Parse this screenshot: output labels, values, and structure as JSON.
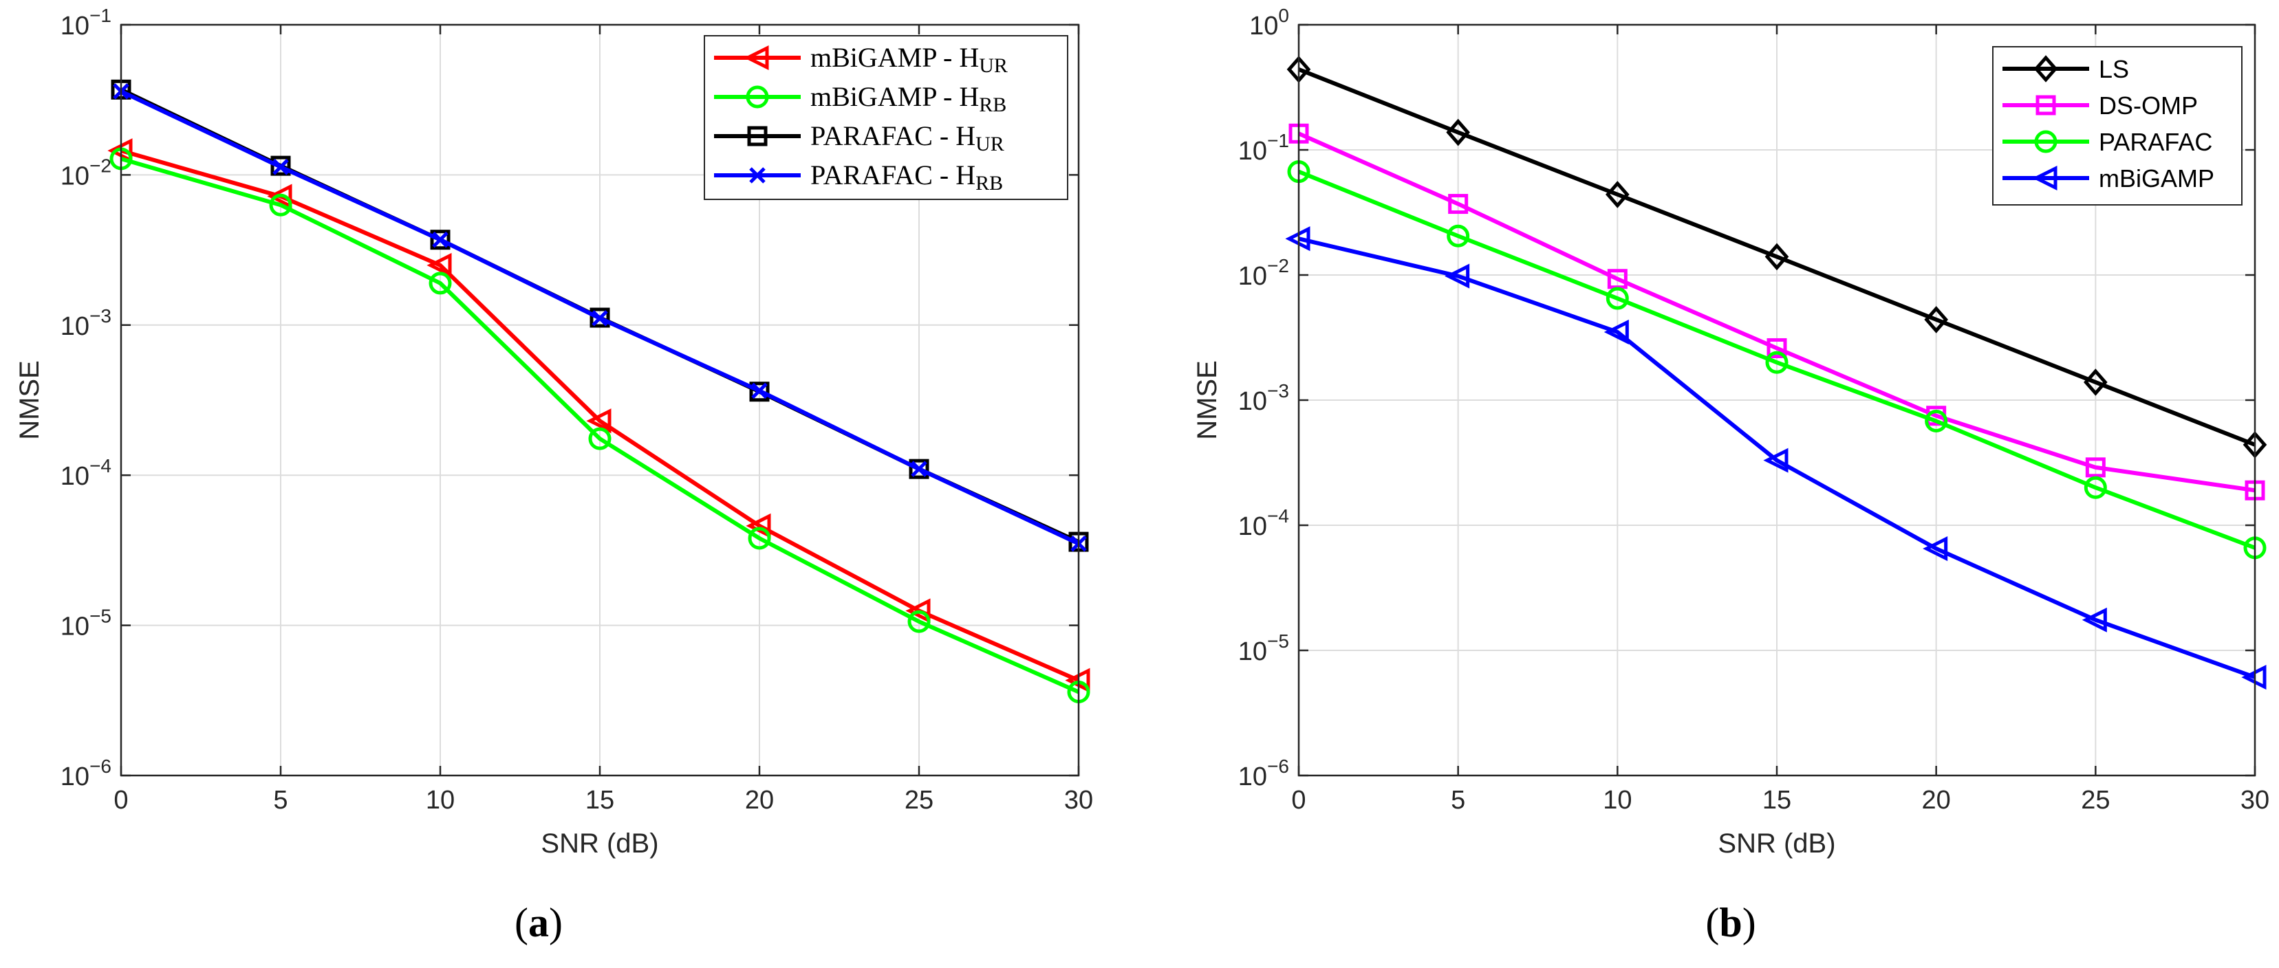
{
  "panels": [
    {
      "caption_text": "(",
      "caption_letter": "a",
      "caption_close": ")"
    },
    {
      "caption_text": "(",
      "caption_letter": "b",
      "caption_close": ")"
    }
  ],
  "chart_data": [
    {
      "type": "line",
      "xlabel": "SNR (dB)",
      "ylabel": "NMSE",
      "x": [
        0,
        5,
        10,
        15,
        20,
        25,
        30
      ],
      "xticks": [
        "0",
        "5",
        "10",
        "15",
        "20",
        "25",
        "30"
      ],
      "y_scale": "log",
      "ylim": [
        1e-06,
        0.1
      ],
      "yticks": [
        {
          "base": "10",
          "exp": "−6"
        },
        {
          "base": "10",
          "exp": "−5"
        },
        {
          "base": "10",
          "exp": "−4"
        },
        {
          "base": "10",
          "exp": "−3"
        },
        {
          "base": "10",
          "exp": "−2"
        },
        {
          "base": "10",
          "exp": "−1"
        }
      ],
      "grid": true,
      "legend_position": "top-right",
      "legend_font": "serif",
      "series": [
        {
          "name": "mBiGAMP - H",
          "subscript": "UR",
          "color": "#ff0000",
          "marker": "triangle-left",
          "values": [
            0.0145,
            0.0072,
            0.0025,
            0.00023,
            4.6e-05,
            1.25e-05,
            4.3e-06
          ]
        },
        {
          "name": "mBiGAMP - H",
          "subscript": "RB",
          "color": "#00ff00",
          "marker": "circle",
          "values": [
            0.0128,
            0.0063,
            0.0019,
            0.000175,
            3.8e-05,
            1.06e-05,
            3.6e-06
          ]
        },
        {
          "name": "PARAFAC - H",
          "subscript": "UR",
          "color": "#000000",
          "marker": "square",
          "values": [
            0.037,
            0.0115,
            0.0037,
            0.00112,
            0.00036,
            0.00011,
            3.6e-05
          ]
        },
        {
          "name": "PARAFAC - H",
          "subscript": "RB",
          "color": "#0000ff",
          "marker": "x",
          "values": [
            0.036,
            0.0113,
            0.0037,
            0.00111,
            0.000365,
            0.00011,
            3.5e-05
          ]
        }
      ]
    },
    {
      "type": "line",
      "xlabel": "SNR (dB)",
      "ylabel": "NMSE",
      "x": [
        0,
        5,
        10,
        15,
        20,
        25,
        30
      ],
      "xticks": [
        "0",
        "5",
        "10",
        "15",
        "20",
        "25",
        "30"
      ],
      "y_scale": "log",
      "ylim": [
        1e-06,
        1
      ],
      "yticks": [
        {
          "base": "10",
          "exp": "−6"
        },
        {
          "base": "10",
          "exp": "−5"
        },
        {
          "base": "10",
          "exp": "−4"
        },
        {
          "base": "10",
          "exp": "−3"
        },
        {
          "base": "10",
          "exp": "−2"
        },
        {
          "base": "10",
          "exp": "−1"
        },
        {
          "base": "10",
          "exp": "0"
        }
      ],
      "grid": true,
      "legend_position": "top-right",
      "legend_font": "sans",
      "series": [
        {
          "name": "LS",
          "subscript": "",
          "color": "#000000",
          "marker": "diamond",
          "values": [
            0.44,
            0.138,
            0.044,
            0.014,
            0.0044,
            0.00139,
            0.00044
          ]
        },
        {
          "name": "DS-OMP",
          "subscript": "",
          "color": "#ff00ff",
          "marker": "square",
          "values": [
            0.135,
            0.037,
            0.0093,
            0.0026,
            0.00075,
            0.00029,
            0.00019
          ]
        },
        {
          "name": "PARAFAC",
          "subscript": "",
          "color": "#00ff00",
          "marker": "circle",
          "values": [
            0.067,
            0.0205,
            0.0065,
            0.002,
            0.00068,
            0.0002,
            6.6e-05
          ]
        },
        {
          "name": "mBiGAMP",
          "subscript": "",
          "color": "#0000ff",
          "marker": "triangle-left",
          "values": [
            0.0195,
            0.0098,
            0.0035,
            0.00033,
            6.5e-05,
            1.75e-05,
            6.1e-06
          ]
        }
      ]
    }
  ]
}
